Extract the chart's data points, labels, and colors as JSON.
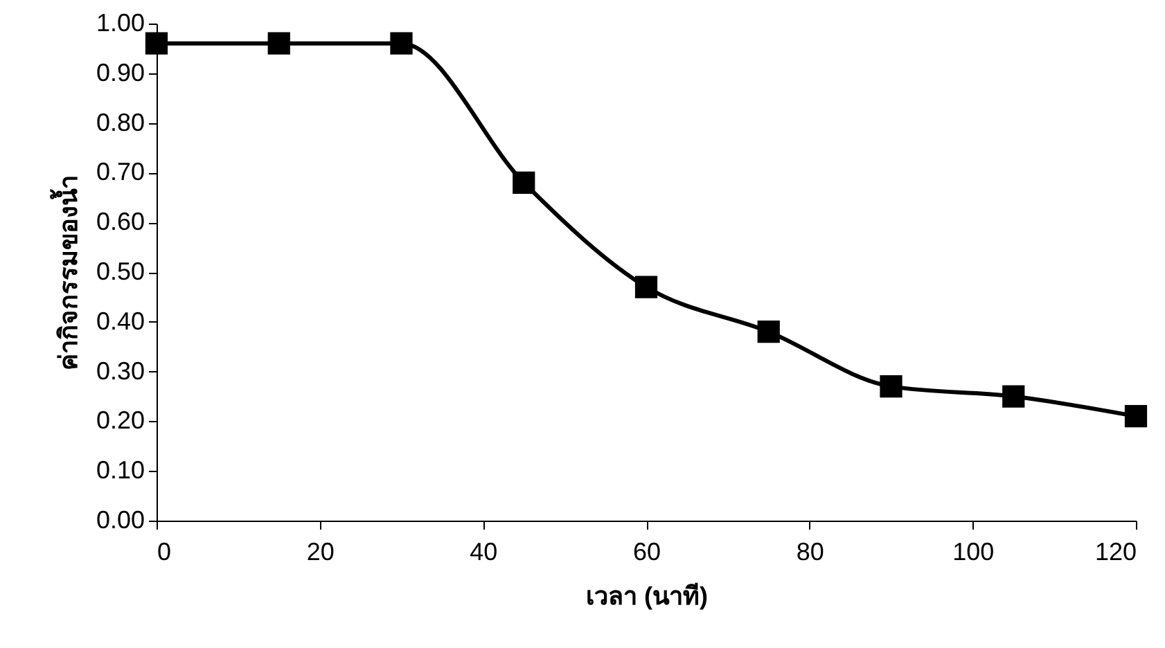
{
  "chart_data": {
    "type": "line",
    "xlabel": "เวลา (นาที)",
    "ylabel": "ค่ากิจกรรมของน้ำ",
    "x": [
      0,
      15,
      30,
      45,
      60,
      75,
      90,
      105,
      120
    ],
    "series": [
      {
        "color": "#000000",
        "values": [
          0.96,
          0.96,
          0.96,
          0.68,
          0.47,
          0.38,
          0.27,
          0.25,
          0.21
        ]
      }
    ],
    "xlim": [
      0,
      120
    ],
    "xticks": [
      0,
      20,
      40,
      60,
      80,
      100,
      120
    ],
    "ylim": [
      0,
      1
    ],
    "yticks": [
      {
        "value": 0,
        "label": "0.00"
      },
      {
        "value": 0.1,
        "label": "0.10"
      },
      {
        "value": 0.2,
        "label": "0.20"
      },
      {
        "value": 0.3,
        "label": "0.30"
      },
      {
        "value": 0.4,
        "label": "0.40"
      },
      {
        "value": 0.5,
        "label": "0.50"
      },
      {
        "value": 0.6,
        "label": "0.60"
      },
      {
        "value": 0.7,
        "label": "0.70"
      },
      {
        "value": 0.8,
        "label": "0.80"
      },
      {
        "value": 0.9,
        "label": "0.90"
      },
      {
        "value": 1,
        "label": "1.00"
      }
    ],
    "grid": false,
    "marker": "square",
    "line_style": "solid"
  }
}
